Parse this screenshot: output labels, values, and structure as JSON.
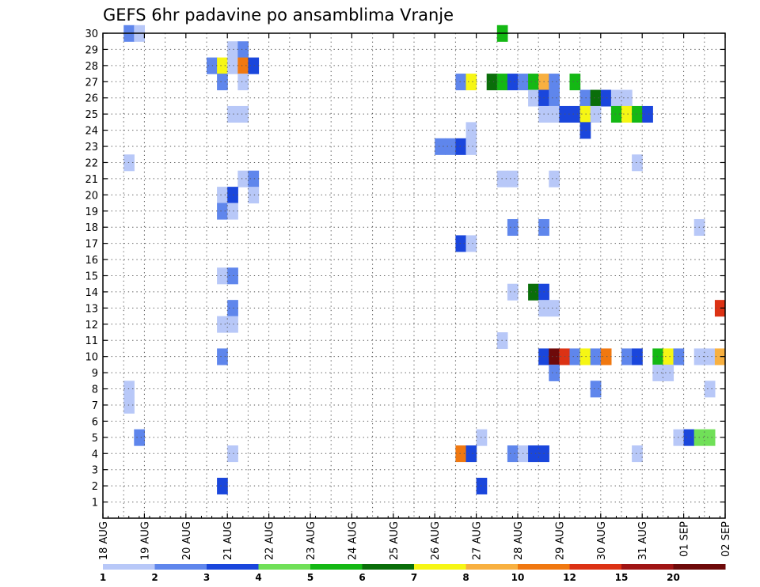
{
  "chart_data": {
    "type": "heatmap",
    "title": "GEFS 6hr padavine po ansamblima Vranje",
    "x_ticks": [
      "18 AUG",
      "19 AUG",
      "20 AUG",
      "21 AUG",
      "22 AUG",
      "23 AUG",
      "24 AUG",
      "25 AUG",
      "26 AUG",
      "27 AUG",
      "28 AUG",
      "29 AUG",
      "30 AUG",
      "31 AUG",
      "01 SEP",
      "02 SEP"
    ],
    "y_ticks": [
      "1",
      "2",
      "3",
      "4",
      "5",
      "6",
      "7",
      "8",
      "9",
      "10",
      "11",
      "12",
      "13",
      "14",
      "15",
      "16",
      "17",
      "18",
      "19",
      "20",
      "21",
      "22",
      "23",
      "24",
      "25",
      "26",
      "27",
      "28",
      "29",
      "30"
    ],
    "x_range_days": [
      0,
      15
    ],
    "y_range": [
      0,
      30
    ],
    "grid": true,
    "colorbar": {
      "levels": [
        "1",
        "2",
        "3",
        "4",
        "5",
        "6",
        "7",
        "8",
        "10",
        "12",
        "15",
        "20"
      ],
      "colors": [
        "#b8c8f8",
        "#5f86ec",
        "#1a46dc",
        "#70e058",
        "#14b814",
        "#0a6e0a",
        "#f6f614",
        "#f8b040",
        "#f07810",
        "#dc3214",
        "#a01414",
        "#6e0a0a"
      ]
    },
    "cells": [
      [
        0.625,
        30,
        2
      ],
      [
        0.875,
        30,
        1
      ],
      [
        9.625,
        30,
        5
      ],
      [
        3.125,
        29,
        1
      ],
      [
        3.375,
        29,
        2
      ],
      [
        2.625,
        28,
        2
      ],
      [
        2.875,
        28,
        7
      ],
      [
        3.125,
        28,
        1
      ],
      [
        3.375,
        28,
        9
      ],
      [
        3.625,
        28,
        3
      ],
      [
        2.875,
        27,
        2
      ],
      [
        3.375,
        27,
        1
      ],
      [
        8.625,
        27,
        2
      ],
      [
        8.875,
        27,
        7
      ],
      [
        9.375,
        27,
        6
      ],
      [
        9.625,
        27,
        5
      ],
      [
        9.875,
        27,
        3
      ],
      [
        10.125,
        27,
        2
      ],
      [
        10.375,
        27,
        5
      ],
      [
        10.625,
        27,
        8
      ],
      [
        10.875,
        27,
        2
      ],
      [
        11.375,
        27,
        5
      ],
      [
        10.375,
        26,
        1
      ],
      [
        10.625,
        26,
        3
      ],
      [
        10.875,
        26,
        2
      ],
      [
        11.625,
        26,
        2
      ],
      [
        11.875,
        26,
        6
      ],
      [
        12.125,
        26,
        3
      ],
      [
        12.375,
        26,
        1
      ],
      [
        12.625,
        26,
        1
      ],
      [
        3.125,
        25,
        1
      ],
      [
        3.375,
        25,
        1
      ],
      [
        10.625,
        25,
        1
      ],
      [
        10.875,
        25,
        1
      ],
      [
        11.125,
        25,
        3
      ],
      [
        11.375,
        25,
        3
      ],
      [
        11.625,
        25,
        7
      ],
      [
        11.875,
        25,
        1
      ],
      [
        12.375,
        25,
        5
      ],
      [
        12.625,
        25,
        7
      ],
      [
        12.875,
        25,
        5
      ],
      [
        13.125,
        25,
        3
      ],
      [
        11.625,
        24,
        3
      ],
      [
        8.875,
        24,
        1
      ],
      [
        8.125,
        23,
        2
      ],
      [
        8.375,
        23,
        2
      ],
      [
        8.625,
        23,
        3
      ],
      [
        8.875,
        23,
        1
      ],
      [
        0.625,
        22,
        1
      ],
      [
        12.875,
        22,
        1
      ],
      [
        3.375,
        21,
        1
      ],
      [
        3.625,
        21,
        2
      ],
      [
        9.625,
        21,
        1
      ],
      [
        9.875,
        21,
        1
      ],
      [
        10.875,
        21,
        1
      ],
      [
        2.875,
        20,
        1
      ],
      [
        3.125,
        20,
        3
      ],
      [
        3.625,
        20,
        1
      ],
      [
        2.875,
        19,
        2
      ],
      [
        3.125,
        19,
        1
      ],
      [
        9.875,
        18,
        2
      ],
      [
        10.625,
        18,
        2
      ],
      [
        14.375,
        18,
        1
      ],
      [
        8.625,
        17,
        3
      ],
      [
        8.875,
        17,
        1
      ],
      [
        2.875,
        15,
        1
      ],
      [
        3.125,
        15,
        2
      ],
      [
        9.875,
        14,
        1
      ],
      [
        10.375,
        14,
        6
      ],
      [
        10.625,
        14,
        3
      ],
      [
        3.125,
        13,
        2
      ],
      [
        10.625,
        13,
        1
      ],
      [
        10.875,
        13,
        1
      ],
      [
        14.875,
        13,
        10
      ],
      [
        15.125,
        13,
        7
      ],
      [
        2.875,
        12,
        1
      ],
      [
        3.125,
        12,
        1
      ],
      [
        9.625,
        11,
        1
      ],
      [
        2.875,
        10,
        2
      ],
      [
        10.625,
        10,
        3
      ],
      [
        10.875,
        10,
        12
      ],
      [
        11.125,
        10,
        10
      ],
      [
        11.375,
        10,
        2
      ],
      [
        11.625,
        10,
        7
      ],
      [
        11.875,
        10,
        2
      ],
      [
        12.125,
        10,
        9
      ],
      [
        12.625,
        10,
        2
      ],
      [
        12.875,
        10,
        3
      ],
      [
        13.375,
        10,
        5
      ],
      [
        13.625,
        10,
        7
      ],
      [
        13.875,
        10,
        2
      ],
      [
        14.375,
        10,
        1
      ],
      [
        14.625,
        10,
        1
      ],
      [
        14.875,
        10,
        8
      ],
      [
        10.875,
        9,
        2
      ],
      [
        13.375,
        9,
        1
      ],
      [
        13.625,
        9,
        1
      ],
      [
        0.625,
        8,
        1
      ],
      [
        11.875,
        8,
        2
      ],
      [
        14.625,
        8,
        1
      ],
      [
        0.625,
        7,
        1
      ],
      [
        15.125,
        7,
        5
      ],
      [
        0.875,
        5,
        2
      ],
      [
        9.125,
        5,
        1
      ],
      [
        13.875,
        5,
        1
      ],
      [
        14.125,
        5,
        3
      ],
      [
        14.375,
        5,
        4
      ],
      [
        14.625,
        5,
        4
      ],
      [
        3.125,
        4,
        1
      ],
      [
        8.625,
        4,
        9
      ],
      [
        8.875,
        4,
        3
      ],
      [
        9.875,
        4,
        2
      ],
      [
        10.125,
        4,
        1
      ],
      [
        10.375,
        4,
        3
      ],
      [
        10.625,
        4,
        3
      ],
      [
        12.875,
        4,
        1
      ],
      [
        2.875,
        2,
        3
      ],
      [
        9.125,
        2,
        3
      ]
    ]
  }
}
